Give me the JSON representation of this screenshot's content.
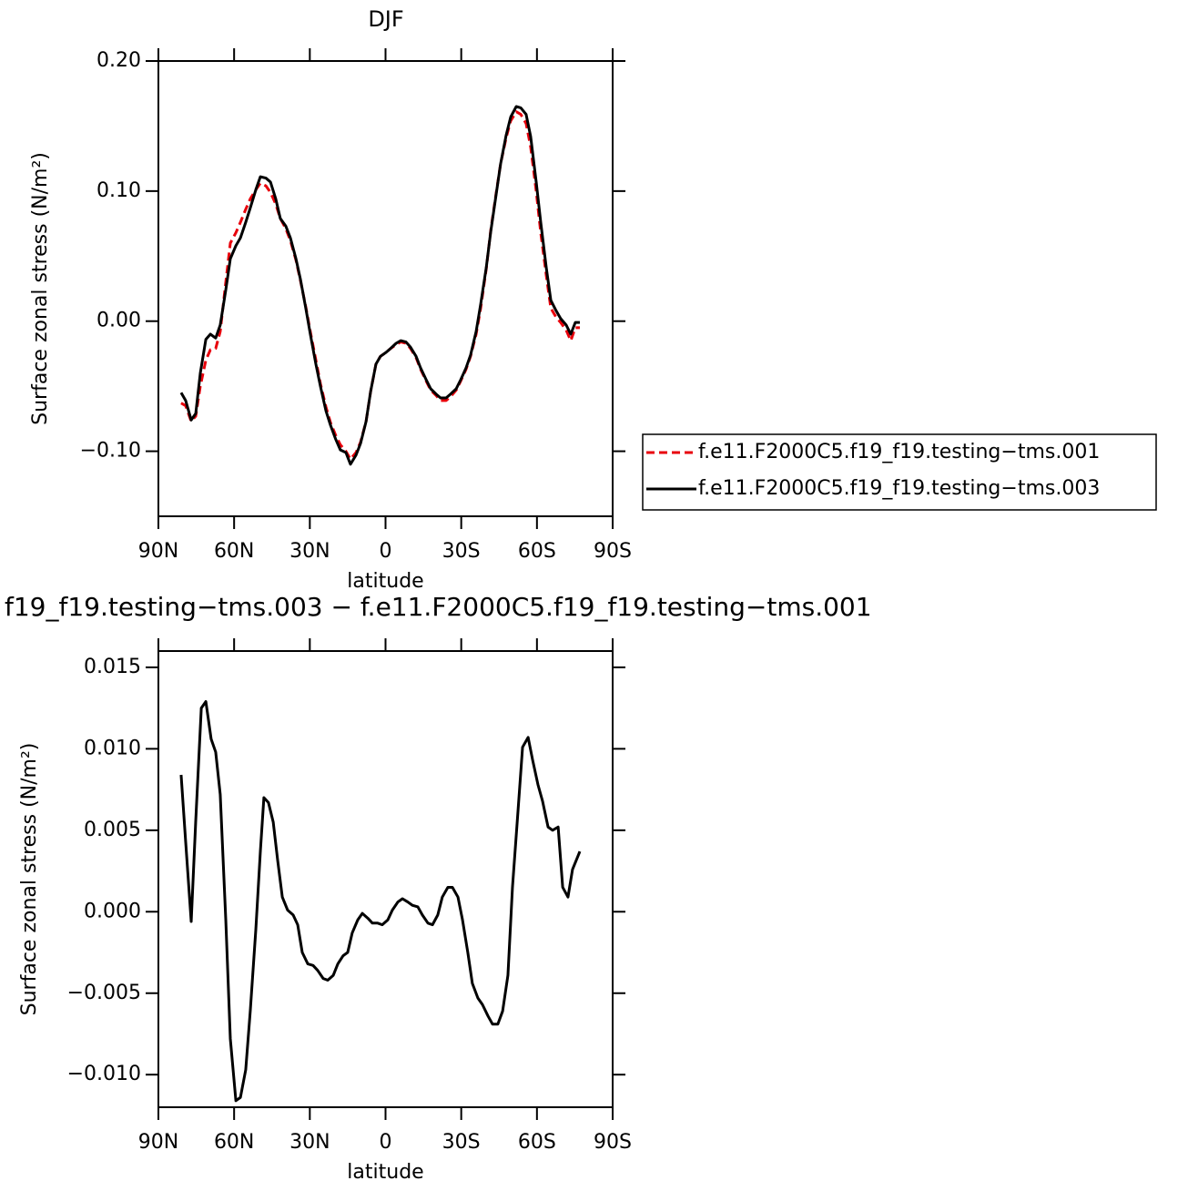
{
  "chart_data": [
    {
      "type": "line",
      "title": "DJF",
      "xlabel": "latitude",
      "ylabel": "Surface zonal stress (N/m²)",
      "x": [
        81,
        79.2,
        77,
        75.2,
        73.4,
        71.2,
        69.4,
        67.3,
        65.5,
        63.3,
        61.5,
        59.3,
        57.5,
        55.4,
        53.6,
        51.4,
        49.6,
        47.4,
        45.6,
        43.5,
        41.7,
        39.5,
        37.7,
        35.5,
        33.7,
        31.6,
        29.8,
        27.6,
        25.8,
        23.6,
        21.8,
        19.7,
        17.9,
        15.7,
        13.9,
        11.7,
        9.9,
        7.7,
        5.9,
        3.8,
        2.0,
        -0.2,
        -2.0,
        -4.2,
        -6.0,
        -8.1,
        -9.9,
        -12.1,
        -13.9,
        -16.1,
        -17.9,
        -20.0,
        -21.8,
        -24.0,
        -25.8,
        -28.0,
        -29.8,
        -31.9,
        -33.7,
        -35.9,
        -37.7,
        -39.9,
        -41.7,
        -43.8,
        -45.6,
        -47.8,
        -49.6,
        -51.8,
        -53.6,
        -55.7,
        -57.5,
        -59.7,
        -61.5,
        -63.7,
        -65.5,
        -67.6,
        -69.4,
        -71.6,
        -73.4,
        -75.2,
        -77.0
      ],
      "series": [
        {
          "name": "f.e11.F2000C5.f19_f19.testing−tms.001",
          "color": "#e8000b",
          "dashed": true,
          "values": [
            -0.063,
            -0.065,
            -0.077,
            -0.073,
            -0.05,
            -0.03,
            -0.022,
            -0.021,
            -0.008,
            0.03,
            0.06,
            0.068,
            0.076,
            0.086,
            0.094,
            0.101,
            0.106,
            0.104,
            0.099,
            0.09,
            0.079,
            0.071,
            0.062,
            0.047,
            0.031,
            0.011,
            -0.008,
            -0.03,
            -0.048,
            -0.066,
            -0.078,
            -0.088,
            -0.095,
            -0.1,
            -0.106,
            -0.101,
            -0.093,
            -0.077,
            -0.054,
            -0.033,
            -0.027,
            -0.024,
            -0.021,
            -0.018,
            -0.016,
            -0.017,
            -0.021,
            -0.028,
            -0.037,
            -0.046,
            -0.053,
            -0.057,
            -0.061,
            -0.061,
            -0.058,
            -0.053,
            -0.046,
            -0.037,
            -0.027,
            -0.01,
            0.01,
            0.04,
            0.07,
            0.098,
            0.121,
            0.141,
            0.154,
            0.161,
            0.159,
            0.152,
            0.134,
            0.1,
            0.068,
            0.035,
            0.01,
            0.003,
            -0.001,
            -0.007,
            -0.015,
            -0.005,
            -0.005
          ]
        },
        {
          "name": "f.e11.F2000C5.f19_f19.testing−tms.003",
          "color": "#000000",
          "dashed": false,
          "values": [
            -0.055,
            -0.061,
            -0.076,
            -0.071,
            -0.04,
            -0.014,
            -0.01,
            -0.013,
            -0.003,
            0.024,
            0.048,
            0.058,
            0.064,
            0.076,
            0.087,
            0.101,
            0.111,
            0.11,
            0.107,
            0.094,
            0.079,
            0.073,
            0.064,
            0.048,
            0.032,
            0.01,
            -0.01,
            -0.033,
            -0.05,
            -0.069,
            -0.08,
            -0.091,
            -0.099,
            -0.101,
            -0.11,
            -0.103,
            -0.094,
            -0.077,
            -0.054,
            -0.033,
            -0.027,
            -0.024,
            -0.021,
            -0.017,
            -0.015,
            -0.016,
            -0.02,
            -0.027,
            -0.036,
            -0.045,
            -0.052,
            -0.056,
            -0.059,
            -0.059,
            -0.056,
            -0.052,
            -0.045,
            -0.036,
            -0.026,
            -0.008,
            0.013,
            0.041,
            0.069,
            0.097,
            0.121,
            0.143,
            0.157,
            0.165,
            0.164,
            0.159,
            0.142,
            0.107,
            0.076,
            0.041,
            0.016,
            0.008,
            0.002,
            -0.003,
            -0.01,
            -0.001,
            -0.001
          ]
        }
      ],
      "xlim": [
        90,
        -90
      ],
      "xticks": [
        {
          "value": 90,
          "label": "90N"
        },
        {
          "value": 60,
          "label": "60N"
        },
        {
          "value": 30,
          "label": "30N"
        },
        0,
        {
          "value": -30,
          "label": "30S"
        },
        {
          "value": -60,
          "label": "60S"
        },
        {
          "value": -90,
          "label": "90S"
        }
      ],
      "ylim": [
        -0.15,
        0.2
      ],
      "yticks": [
        {
          "value": -0.1,
          "label": "−0.10"
        },
        {
          "value": 0,
          "label": "0.00"
        },
        {
          "value": 0.1,
          "label": "0.10"
        },
        {
          "value": 0.2,
          "label": "0.20"
        }
      ],
      "legend": "right"
    },
    {
      "type": "line",
      "title": "f19_f19.testing−tms.003 − f.e11.F2000C5.f19_f19.testing−tms.001",
      "xlabel": "latitude",
      "ylabel": "Surface zonal stress (N/m²)",
      "x": [
        81.0,
        79.2,
        77.0,
        75.2,
        73.0,
        71.2,
        69.1,
        67.3,
        65.5,
        63.3,
        61.5,
        59.3,
        57.5,
        55.4,
        53.6,
        51.4,
        49.6,
        48.2,
        46.4,
        44.5,
        42.7,
        40.9,
        38.8,
        36.6,
        34.8,
        33.0,
        30.8,
        28.7,
        26.9,
        24.7,
        22.9,
        20.7,
        18.9,
        16.8,
        15.0,
        13.2,
        11.0,
        9.2,
        7.0,
        5.2,
        3.1,
        1.3,
        -0.9,
        -2.7,
        -4.9,
        -6.7,
        -8.8,
        -10.6,
        -12.8,
        -14.6,
        -16.8,
        -18.6,
        -20.7,
        -22.5,
        -24.7,
        -26.5,
        -28.7,
        -30.5,
        -32.6,
        -34.4,
        -36.6,
        -38.4,
        -40.6,
        -42.4,
        -44.5,
        -46.4,
        -48.5,
        -50.3,
        -52.5,
        -54.3,
        -56.5,
        -58.3,
        -60.4,
        -62.2,
        -64.4,
        -66.2,
        -68.4,
        -70.2,
        -72.3,
        -74.1,
        -77.0
      ],
      "series": [
        {
          "color": "#000000",
          "dashed": false,
          "values": [
            0.0084,
            0.0043,
            -0.0006,
            0.0056,
            0.0125,
            0.0129,
            0.0106,
            0.0098,
            0.0072,
            -0.0005,
            -0.0078,
            -0.0116,
            -0.0114,
            -0.0097,
            -0.0061,
            -0.0011,
            0.0037,
            0.007,
            0.0067,
            0.0055,
            0.0031,
            0.0009,
            0.0001,
            -0.0002,
            -0.0008,
            -0.0025,
            -0.0032,
            -0.0033,
            -0.0036,
            -0.0041,
            -0.0042,
            -0.0039,
            -0.0032,
            -0.0027,
            -0.0025,
            -0.0013,
            -0.0005,
            -0.0001,
            -0.0004,
            -0.0007,
            -0.0007,
            -0.0008,
            -0.0005,
            0.0001,
            0.0006,
            0.0008,
            0.0006,
            0.0004,
            0.0003,
            -0.0002,
            -0.0007,
            -0.0008,
            -0.0002,
            0.0009,
            0.0015,
            0.0015,
            0.0009,
            -0.0005,
            -0.0025,
            -0.0044,
            -0.0053,
            -0.0057,
            -0.0064,
            -0.0069,
            -0.0069,
            -0.0061,
            -0.0039,
            0.0015,
            0.0062,
            0.0101,
            0.0107,
            0.0093,
            0.0078,
            0.0068,
            0.0052,
            0.005,
            0.0052,
            0.0015,
            0.0009,
            0.0026,
            0.0037
          ]
        }
      ],
      "xlim": [
        90,
        -90
      ],
      "xticks": [
        {
          "value": 90,
          "label": "90N"
        },
        {
          "value": 60,
          "label": "60N"
        },
        {
          "value": 30,
          "label": "30N"
        },
        0,
        {
          "value": -30,
          "label": "30S"
        },
        {
          "value": -60,
          "label": "60S"
        },
        {
          "value": -90,
          "label": "90S"
        }
      ],
      "ylim": [
        -0.012,
        0.016
      ],
      "yticks": [
        {
          "value": -0.01,
          "label": "−0.010"
        },
        {
          "value": -0.005,
          "label": "−0.005"
        },
        {
          "value": 0,
          "label": "0.000"
        },
        {
          "value": 0.005,
          "label": "0.005"
        },
        {
          "value": 0.01,
          "label": "0.010"
        },
        {
          "value": 0.015,
          "label": "0.015"
        }
      ]
    }
  ]
}
